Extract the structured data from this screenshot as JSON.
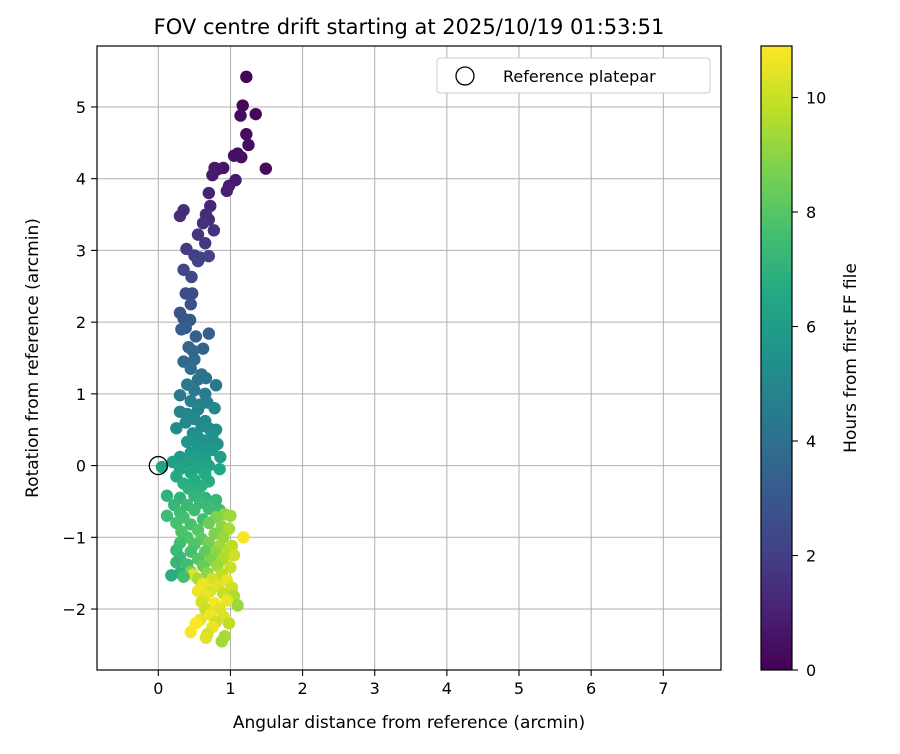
{
  "chart_data": {
    "type": "scatter",
    "title": "FOV centre drift starting at 2025/10/19 01:53:51",
    "xlabel": "Angular distance from reference (arcmin)",
    "ylabel": "Rotation from reference (arcmin)",
    "xlim": [
      -0.85,
      7.8
    ],
    "ylim": [
      -2.85,
      5.85
    ],
    "xticks": [
      0,
      1,
      2,
      3,
      4,
      5,
      6,
      7
    ],
    "yticks": [
      -2,
      -1,
      0,
      1,
      2,
      3,
      4,
      5
    ],
    "xtick_labels": [
      "0",
      "1",
      "2",
      "3",
      "4",
      "5",
      "6",
      "7"
    ],
    "ytick_labels": [
      "−2",
      "−1",
      "0",
      "1",
      "2",
      "3",
      "4",
      "5"
    ],
    "grid": true,
    "colormap": "viridis",
    "colorbar": {
      "label": "Hours from first FF file",
      "range": [
        0,
        10.9
      ],
      "ticks": [
        0,
        2,
        4,
        6,
        8,
        10
      ],
      "tick_labels": [
        "0",
        "2",
        "4",
        "6",
        "8",
        "10"
      ]
    },
    "legend": {
      "position": "top-right",
      "entries": [
        "Reference platepar"
      ]
    },
    "reference_point": {
      "x": 0,
      "y": 0,
      "label": "Reference platepar"
    },
    "points": [
      {
        "x": 1.22,
        "y": 5.42,
        "t": 0.1
      },
      {
        "x": 1.17,
        "y": 5.02,
        "t": 0.2
      },
      {
        "x": 1.35,
        "y": 4.9,
        "t": 0.2
      },
      {
        "x": 1.14,
        "y": 4.88,
        "t": 0.3
      },
      {
        "x": 1.22,
        "y": 4.62,
        "t": 0.3
      },
      {
        "x": 1.25,
        "y": 4.47,
        "t": 0.4
      },
      {
        "x": 1.15,
        "y": 4.3,
        "t": 0.4
      },
      {
        "x": 1.1,
        "y": 4.35,
        "t": 0.5
      },
      {
        "x": 1.05,
        "y": 4.32,
        "t": 0.5
      },
      {
        "x": 1.49,
        "y": 4.14,
        "t": 0.3
      },
      {
        "x": 0.9,
        "y": 4.15,
        "t": 0.6
      },
      {
        "x": 0.78,
        "y": 4.15,
        "t": 0.7
      },
      {
        "x": 0.82,
        "y": 4.13,
        "t": 0.7
      },
      {
        "x": 0.75,
        "y": 4.05,
        "t": 0.8
      },
      {
        "x": 1.07,
        "y": 3.98,
        "t": 0.8
      },
      {
        "x": 0.98,
        "y": 3.9,
        "t": 0.9
      },
      {
        "x": 0.95,
        "y": 3.83,
        "t": 1.0
      },
      {
        "x": 0.7,
        "y": 3.8,
        "t": 1.1
      },
      {
        "x": 0.72,
        "y": 3.62,
        "t": 1.2
      },
      {
        "x": 0.66,
        "y": 3.5,
        "t": 1.3
      },
      {
        "x": 0.3,
        "y": 3.48,
        "t": 1.4
      },
      {
        "x": 0.35,
        "y": 3.56,
        "t": 1.4
      },
      {
        "x": 0.7,
        "y": 3.43,
        "t": 1.4
      },
      {
        "x": 0.62,
        "y": 3.38,
        "t": 1.5
      },
      {
        "x": 0.77,
        "y": 3.28,
        "t": 1.6
      },
      {
        "x": 0.55,
        "y": 3.22,
        "t": 1.7
      },
      {
        "x": 0.65,
        "y": 3.1,
        "t": 1.8
      },
      {
        "x": 0.39,
        "y": 3.02,
        "t": 1.9
      },
      {
        "x": 0.5,
        "y": 2.93,
        "t": 2.0
      },
      {
        "x": 0.58,
        "y": 2.9,
        "t": 2.1
      },
      {
        "x": 0.55,
        "y": 2.85,
        "t": 2.2
      },
      {
        "x": 0.7,
        "y": 2.92,
        "t": 2.1
      },
      {
        "x": 0.35,
        "y": 2.73,
        "t": 2.3
      },
      {
        "x": 0.46,
        "y": 2.63,
        "t": 2.4
      },
      {
        "x": 0.38,
        "y": 2.4,
        "t": 2.5
      },
      {
        "x": 0.47,
        "y": 2.4,
        "t": 2.6
      },
      {
        "x": 0.45,
        "y": 2.25,
        "t": 2.7
      },
      {
        "x": 0.3,
        "y": 2.13,
        "t": 2.8
      },
      {
        "x": 0.35,
        "y": 2.05,
        "t": 2.9
      },
      {
        "x": 0.44,
        "y": 2.03,
        "t": 3.0
      },
      {
        "x": 0.32,
        "y": 1.9,
        "t": 3.1
      },
      {
        "x": 0.38,
        "y": 1.92,
        "t": 3.2
      },
      {
        "x": 0.7,
        "y": 1.84,
        "t": 3.3
      },
      {
        "x": 0.52,
        "y": 1.8,
        "t": 3.3
      },
      {
        "x": 0.62,
        "y": 1.63,
        "t": 3.4
      },
      {
        "x": 0.42,
        "y": 1.65,
        "t": 3.5
      },
      {
        "x": 0.48,
        "y": 1.6,
        "t": 3.6
      },
      {
        "x": 0.35,
        "y": 1.45,
        "t": 3.7
      },
      {
        "x": 0.5,
        "y": 1.48,
        "t": 3.8
      },
      {
        "x": 0.45,
        "y": 1.35,
        "t": 3.9
      },
      {
        "x": 0.6,
        "y": 1.27,
        "t": 4.0
      },
      {
        "x": 0.55,
        "y": 1.2,
        "t": 4.1
      },
      {
        "x": 0.66,
        "y": 1.22,
        "t": 4.2
      },
      {
        "x": 0.8,
        "y": 1.12,
        "t": 4.3
      },
      {
        "x": 0.4,
        "y": 1.13,
        "t": 4.3
      },
      {
        "x": 0.3,
        "y": 0.98,
        "t": 4.4
      },
      {
        "x": 0.5,
        "y": 1.05,
        "t": 4.4
      },
      {
        "x": 0.65,
        "y": 1.0,
        "t": 4.5
      },
      {
        "x": 0.45,
        "y": 0.9,
        "t": 4.6
      },
      {
        "x": 0.58,
        "y": 0.85,
        "t": 4.7
      },
      {
        "x": 0.68,
        "y": 0.88,
        "t": 4.7
      },
      {
        "x": 0.3,
        "y": 0.75,
        "t": 4.8
      },
      {
        "x": 0.4,
        "y": 0.72,
        "t": 4.9
      },
      {
        "x": 0.55,
        "y": 0.78,
        "t": 4.9
      },
      {
        "x": 0.78,
        "y": 0.8,
        "t": 5.0
      },
      {
        "x": 0.5,
        "y": 0.65,
        "t": 5.0
      },
      {
        "x": 0.65,
        "y": 0.62,
        "t": 5.1
      },
      {
        "x": 0.38,
        "y": 0.6,
        "t": 5.1
      },
      {
        "x": 0.25,
        "y": 0.52,
        "t": 5.2
      },
      {
        "x": 0.6,
        "y": 0.55,
        "t": 5.2
      },
      {
        "x": 0.7,
        "y": 0.52,
        "t": 5.3
      },
      {
        "x": 0.8,
        "y": 0.5,
        "t": 5.3
      },
      {
        "x": 0.48,
        "y": 0.45,
        "t": 5.4
      },
      {
        "x": 0.55,
        "y": 0.4,
        "t": 5.4
      },
      {
        "x": 0.75,
        "y": 0.42,
        "t": 5.5
      },
      {
        "x": 0.66,
        "y": 0.35,
        "t": 5.5
      },
      {
        "x": 0.4,
        "y": 0.33,
        "t": 5.6
      },
      {
        "x": 0.82,
        "y": 0.3,
        "t": 5.6
      },
      {
        "x": 0.55,
        "y": 0.28,
        "t": 5.7
      },
      {
        "x": 0.62,
        "y": 0.2,
        "t": 5.8
      },
      {
        "x": 0.75,
        "y": 0.22,
        "t": 5.8
      },
      {
        "x": 0.45,
        "y": 0.18,
        "t": 5.9
      },
      {
        "x": 0.3,
        "y": 0.12,
        "t": 5.9
      },
      {
        "x": 0.55,
        "y": 0.12,
        "t": 6.0
      },
      {
        "x": 0.65,
        "y": 0.1,
        "t": 6.0
      },
      {
        "x": 0.86,
        "y": 0.12,
        "t": 6.1
      },
      {
        "x": 0.2,
        "y": 0.05,
        "t": 6.1
      },
      {
        "x": 0.4,
        "y": 0.05,
        "t": 6.2
      },
      {
        "x": 0.55,
        "y": 0.02,
        "t": 6.2
      },
      {
        "x": 0.7,
        "y": 0.0,
        "t": 6.3
      },
      {
        "x": 0.05,
        "y": -0.02,
        "t": 6.3
      },
      {
        "x": 0.3,
        "y": -0.05,
        "t": 6.4
      },
      {
        "x": 0.6,
        "y": -0.05,
        "t": 6.4
      },
      {
        "x": 0.85,
        "y": -0.05,
        "t": 6.5
      },
      {
        "x": 0.45,
        "y": -0.1,
        "t": 6.5
      },
      {
        "x": 0.65,
        "y": -0.12,
        "t": 6.6
      },
      {
        "x": 0.25,
        "y": -0.15,
        "t": 6.6
      },
      {
        "x": 0.5,
        "y": -0.2,
        "t": 6.7
      },
      {
        "x": 0.7,
        "y": -0.22,
        "t": 6.7
      },
      {
        "x": 0.35,
        "y": -0.25,
        "t": 6.8
      },
      {
        "x": 0.6,
        "y": -0.28,
        "t": 6.8
      },
      {
        "x": 0.42,
        "y": -0.32,
        "t": 6.9
      },
      {
        "x": 0.55,
        "y": -0.35,
        "t": 6.9
      },
      {
        "x": 0.12,
        "y": -0.42,
        "t": 7.0
      },
      {
        "x": 0.3,
        "y": -0.45,
        "t": 7.0
      },
      {
        "x": 0.5,
        "y": -0.42,
        "t": 7.1
      },
      {
        "x": 0.65,
        "y": -0.45,
        "t": 7.1
      },
      {
        "x": 0.8,
        "y": -0.48,
        "t": 7.2
      },
      {
        "x": 0.22,
        "y": -0.55,
        "t": 7.2
      },
      {
        "x": 0.4,
        "y": -0.55,
        "t": 7.3
      },
      {
        "x": 0.58,
        "y": -0.52,
        "t": 7.3
      },
      {
        "x": 0.7,
        "y": -0.6,
        "t": 7.4
      },
      {
        "x": 0.85,
        "y": -0.62,
        "t": 7.4
      },
      {
        "x": 0.3,
        "y": -0.65,
        "t": 7.5
      },
      {
        "x": 0.5,
        "y": -0.62,
        "t": 7.5
      },
      {
        "x": 0.12,
        "y": -0.7,
        "t": 7.4
      },
      {
        "x": 0.35,
        "y": -0.72,
        "t": 7.6
      },
      {
        "x": 0.62,
        "y": -0.75,
        "t": 7.6
      },
      {
        "x": 0.92,
        "y": -0.68,
        "t": 9.1
      },
      {
        "x": 1.0,
        "y": -0.7,
        "t": 9.3
      },
      {
        "x": 0.8,
        "y": -0.72,
        "t": 8.8
      },
      {
        "x": 0.25,
        "y": -0.8,
        "t": 7.7
      },
      {
        "x": 0.45,
        "y": -0.82,
        "t": 7.7
      },
      {
        "x": 0.7,
        "y": -0.8,
        "t": 8.5
      },
      {
        "x": 0.88,
        "y": -0.85,
        "t": 9.0
      },
      {
        "x": 0.98,
        "y": -0.88,
        "t": 9.5
      },
      {
        "x": 0.32,
        "y": -0.92,
        "t": 7.8
      },
      {
        "x": 0.55,
        "y": -0.9,
        "t": 8.0
      },
      {
        "x": 0.78,
        "y": -0.95,
        "t": 8.8
      },
      {
        "x": 0.4,
        "y": -1.0,
        "t": 7.8
      },
      {
        "x": 0.6,
        "y": -1.02,
        "t": 8.2
      },
      {
        "x": 0.9,
        "y": -1.0,
        "t": 9.2
      },
      {
        "x": 1.18,
        "y": -1.0,
        "t": 10.8
      },
      {
        "x": 0.3,
        "y": -1.08,
        "t": 7.6
      },
      {
        "x": 0.5,
        "y": -1.1,
        "t": 7.9
      },
      {
        "x": 0.7,
        "y": -1.08,
        "t": 8.6
      },
      {
        "x": 0.85,
        "y": -1.12,
        "t": 9.3
      },
      {
        "x": 1.02,
        "y": -1.12,
        "t": 9.8
      },
      {
        "x": 0.25,
        "y": -1.18,
        "t": 7.4
      },
      {
        "x": 0.45,
        "y": -1.2,
        "t": 7.7
      },
      {
        "x": 0.65,
        "y": -1.2,
        "t": 8.3
      },
      {
        "x": 0.8,
        "y": -1.22,
        "t": 9.0
      },
      {
        "x": 0.95,
        "y": -1.22,
        "t": 9.7
      },
      {
        "x": 1.05,
        "y": -1.25,
        "t": 10.1
      },
      {
        "x": 0.3,
        "y": -1.28,
        "t": 7.3
      },
      {
        "x": 0.55,
        "y": -1.3,
        "t": 8.0
      },
      {
        "x": 0.72,
        "y": -1.32,
        "t": 8.8
      },
      {
        "x": 0.9,
        "y": -1.3,
        "t": 9.6
      },
      {
        "x": 0.25,
        "y": -1.35,
        "t": 7.2
      },
      {
        "x": 0.4,
        "y": -1.38,
        "t": 7.5
      },
      {
        "x": 0.62,
        "y": -1.4,
        "t": 8.4
      },
      {
        "x": 0.82,
        "y": -1.4,
        "t": 9.3
      },
      {
        "x": 1.0,
        "y": -1.42,
        "t": 10.0
      },
      {
        "x": 0.45,
        "y": -1.48,
        "t": 8.6
      },
      {
        "x": 0.3,
        "y": -1.5,
        "t": 7.0
      },
      {
        "x": 0.48,
        "y": -1.52,
        "t": 10.3
      },
      {
        "x": 0.68,
        "y": -1.5,
        "t": 9.0
      },
      {
        "x": 0.88,
        "y": -1.52,
        "t": 9.8
      },
      {
        "x": 0.18,
        "y": -1.53,
        "t": 6.8
      },
      {
        "x": 0.35,
        "y": -1.55,
        "t": 7.6
      },
      {
        "x": 0.55,
        "y": -1.58,
        "t": 9.5
      },
      {
        "x": 0.75,
        "y": -1.58,
        "t": 10.2
      },
      {
        "x": 0.95,
        "y": -1.6,
        "t": 10.5
      },
      {
        "x": 0.62,
        "y": -1.65,
        "t": 10.6
      },
      {
        "x": 0.82,
        "y": -1.68,
        "t": 10.4
      },
      {
        "x": 1.02,
        "y": -1.7,
        "t": 10.1
      },
      {
        "x": 0.55,
        "y": -1.75,
        "t": 10.7
      },
      {
        "x": 0.72,
        "y": -1.75,
        "t": 10.3
      },
      {
        "x": 0.9,
        "y": -1.78,
        "t": 9.9
      },
      {
        "x": 0.65,
        "y": -1.82,
        "t": 10.5
      },
      {
        "x": 1.05,
        "y": -1.82,
        "t": 9.6
      },
      {
        "x": 0.6,
        "y": -1.9,
        "t": 10.2
      },
      {
        "x": 0.78,
        "y": -1.92,
        "t": 10.8
      },
      {
        "x": 0.95,
        "y": -1.88,
        "t": 10.6
      },
      {
        "x": 1.1,
        "y": -1.95,
        "t": 9.2
      },
      {
        "x": 0.65,
        "y": -2.0,
        "t": 10.0
      },
      {
        "x": 0.85,
        "y": -2.0,
        "t": 10.4
      },
      {
        "x": 0.72,
        "y": -2.08,
        "t": 10.7
      },
      {
        "x": 0.9,
        "y": -2.1,
        "t": 10.3
      },
      {
        "x": 0.58,
        "y": -2.15,
        "t": 10.5
      },
      {
        "x": 0.8,
        "y": -2.18,
        "t": 10.1
      },
      {
        "x": 0.52,
        "y": -2.2,
        "t": 10.9
      },
      {
        "x": 0.98,
        "y": -2.2,
        "t": 9.8
      },
      {
        "x": 0.45,
        "y": -2.32,
        "t": 10.8
      },
      {
        "x": 0.75,
        "y": -2.25,
        "t": 10.6
      },
      {
        "x": 0.68,
        "y": -2.35,
        "t": 10.2
      },
      {
        "x": 0.92,
        "y": -2.38,
        "t": 9.5
      },
      {
        "x": 0.66,
        "y": -2.4,
        "t": 10.4
      },
      {
        "x": 0.88,
        "y": -2.45,
        "t": 9.4
      }
    ]
  }
}
